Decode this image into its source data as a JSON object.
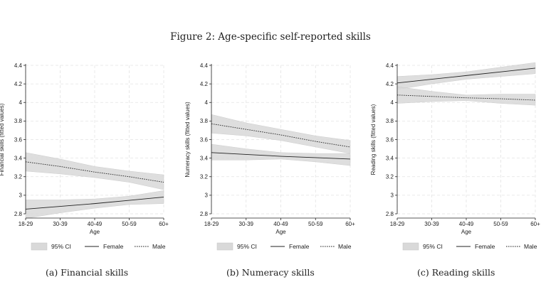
{
  "figure_title": "Figure 2: Age-specific self-reported skills",
  "colors": {
    "ci_band": "#d9d9d9",
    "grid": "#e3e3e3",
    "line": "#222222"
  },
  "chart_data": [
    {
      "type": "line",
      "caption": "(a) Financial skills",
      "xlabel": "Age",
      "ylabel": "Financial skills (fitted values)",
      "categories": [
        "18-29",
        "30-39",
        "40-49",
        "50-59",
        "60+"
      ],
      "ylim": [
        2.8,
        4.4
      ],
      "yticks": [
        2.8,
        3,
        3.2,
        3.4,
        3.6,
        3.8,
        4,
        4.2,
        4.4
      ],
      "grid": true,
      "legend_position": "bottom",
      "legend": [
        "95% CI",
        "Female",
        "Male"
      ],
      "series": [
        {
          "name": "Female",
          "style": "solid",
          "values": [
            2.85,
            2.88,
            2.91,
            2.945,
            2.98
          ],
          "ci_low": [
            2.75,
            2.81,
            2.86,
            2.9,
            2.91
          ],
          "ci_high": [
            2.95,
            2.95,
            2.96,
            2.99,
            3.05
          ]
        },
        {
          "name": "Male",
          "style": "dotted",
          "values": [
            3.36,
            3.31,
            3.25,
            3.2,
            3.14
          ],
          "ci_low": [
            3.26,
            3.23,
            3.19,
            3.14,
            3.06
          ],
          "ci_high": [
            3.46,
            3.39,
            3.31,
            3.26,
            3.22
          ]
        }
      ]
    },
    {
      "type": "line",
      "caption": "(b) Numeracy skills",
      "xlabel": "Age",
      "ylabel": "Numeracy skills (fitted values)",
      "categories": [
        "18-29",
        "30-39",
        "40-49",
        "50-59",
        "60+"
      ],
      "ylim": [
        2.8,
        4.4
      ],
      "yticks": [
        2.8,
        3,
        3.2,
        3.4,
        3.6,
        3.8,
        4,
        4.2,
        4.4
      ],
      "grid": true,
      "legend_position": "bottom",
      "legend": [
        "95% CI",
        "Female",
        "Male"
      ],
      "series": [
        {
          "name": "Female",
          "style": "solid",
          "values": [
            3.46,
            3.44,
            3.42,
            3.405,
            3.39
          ],
          "ci_low": [
            3.38,
            3.38,
            3.39,
            3.36,
            3.32
          ],
          "ci_high": [
            3.55,
            3.5,
            3.46,
            3.45,
            3.45
          ]
        },
        {
          "name": "Male",
          "style": "dotted",
          "values": [
            3.77,
            3.71,
            3.65,
            3.58,
            3.52
          ],
          "ci_low": [
            3.67,
            3.64,
            3.59,
            3.52,
            3.45
          ],
          "ci_high": [
            3.87,
            3.78,
            3.71,
            3.64,
            3.59
          ]
        }
      ]
    },
    {
      "type": "line",
      "caption": "(c) Reading skills",
      "xlabel": "Age",
      "ylabel": "Reading skills (fitted values)",
      "categories": [
        "18-29",
        "30-39",
        "40-49",
        "50-59",
        "60+"
      ],
      "ylim": [
        2.8,
        4.4
      ],
      "yticks": [
        2.8,
        3,
        3.2,
        3.4,
        3.6,
        3.8,
        4,
        4.2,
        4.4
      ],
      "grid": true,
      "legend_position": "bottom",
      "legend": [
        "95% CI",
        "Female",
        "Male"
      ],
      "series": [
        {
          "name": "Female",
          "style": "solid",
          "values": [
            4.21,
            4.25,
            4.29,
            4.33,
            4.37
          ],
          "ci_low": [
            4.14,
            4.2,
            4.25,
            4.28,
            4.31
          ],
          "ci_high": [
            4.28,
            4.3,
            4.33,
            4.38,
            4.43
          ]
        },
        {
          "name": "Male",
          "style": "dotted",
          "values": [
            4.08,
            4.065,
            4.05,
            4.04,
            4.025
          ],
          "ci_low": [
            3.99,
            4.01,
            4.02,
            3.99,
            3.97
          ],
          "ci_high": [
            4.17,
            4.12,
            4.08,
            4.09,
            4.09
          ]
        }
      ]
    }
  ]
}
